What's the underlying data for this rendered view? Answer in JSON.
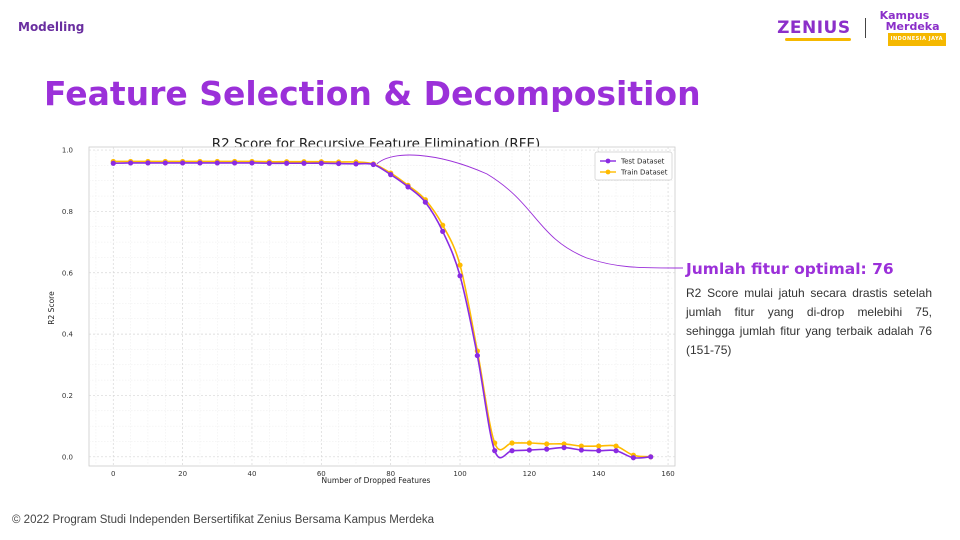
{
  "header": {
    "section": "Modelling",
    "brand_name": "ZENIUS",
    "partner_line1": "Kampus",
    "partner_line2": "Merdeka",
    "partner_line3": "INDONESIA JAYA"
  },
  "title": "Feature Selection & Decomposition",
  "colors": {
    "title": "#9b30d9",
    "test_series": "#8a2be2",
    "train_series": "#ffbb00",
    "annotation_line": "#9b30d9",
    "brand_text": "#8b2fc9",
    "brand_accent": "#f5b800"
  },
  "chart_data": {
    "type": "line",
    "title": "R2 Score for Recursive Feature Elimination (RFE)",
    "xlabel": "Number of Dropped Features",
    "ylabel": "R2 Score",
    "xlim": [
      -7,
      162
    ],
    "ylim": [
      -0.03,
      1.01
    ],
    "xticks": [
      0,
      20,
      40,
      60,
      80,
      100,
      120,
      140,
      160
    ],
    "yticks": [
      0.0,
      0.2,
      0.4,
      0.6,
      0.8,
      1.0
    ],
    "grid": true,
    "legend_position": "top-right",
    "x": [
      0,
      5,
      10,
      15,
      20,
      25,
      30,
      35,
      40,
      45,
      50,
      55,
      60,
      65,
      70,
      75,
      80,
      85,
      90,
      95,
      100,
      105,
      110,
      115,
      120,
      125,
      130,
      135,
      140,
      145,
      150,
      155
    ],
    "series": [
      {
        "name": "Test Dataset",
        "values": [
          0.957,
          0.958,
          0.958,
          0.958,
          0.958,
          0.958,
          0.958,
          0.958,
          0.958,
          0.957,
          0.957,
          0.957,
          0.957,
          0.956,
          0.955,
          0.953,
          0.92,
          0.88,
          0.83,
          0.735,
          0.59,
          0.33,
          0.02,
          0.02,
          0.022,
          0.025,
          0.03,
          0.022,
          0.02,
          0.02,
          -0.003,
          0.0
        ]
      },
      {
        "name": "Train Dataset",
        "values": [
          0.963,
          0.963,
          0.963,
          0.963,
          0.963,
          0.963,
          0.963,
          0.963,
          0.963,
          0.962,
          0.962,
          0.962,
          0.962,
          0.961,
          0.961,
          0.955,
          0.925,
          0.885,
          0.838,
          0.755,
          0.625,
          0.345,
          0.045,
          0.045,
          0.045,
          0.042,
          0.042,
          0.035,
          0.035,
          0.035,
          0.005,
          0.0
        ]
      }
    ],
    "annotation": {
      "target_x": 76,
      "title": "Jumlah fitur optimal: 76",
      "text": "R2 Score mulai jatuh secara drastis setelah jumlah fitur yang di-drop melebihi 75, sehingga jumlah fitur yang terbaik adalah 76 (151-75)"
    }
  },
  "footer": "© 2022 Program Studi Independen Bersertifikat Zenius Bersama Kampus Merdeka"
}
